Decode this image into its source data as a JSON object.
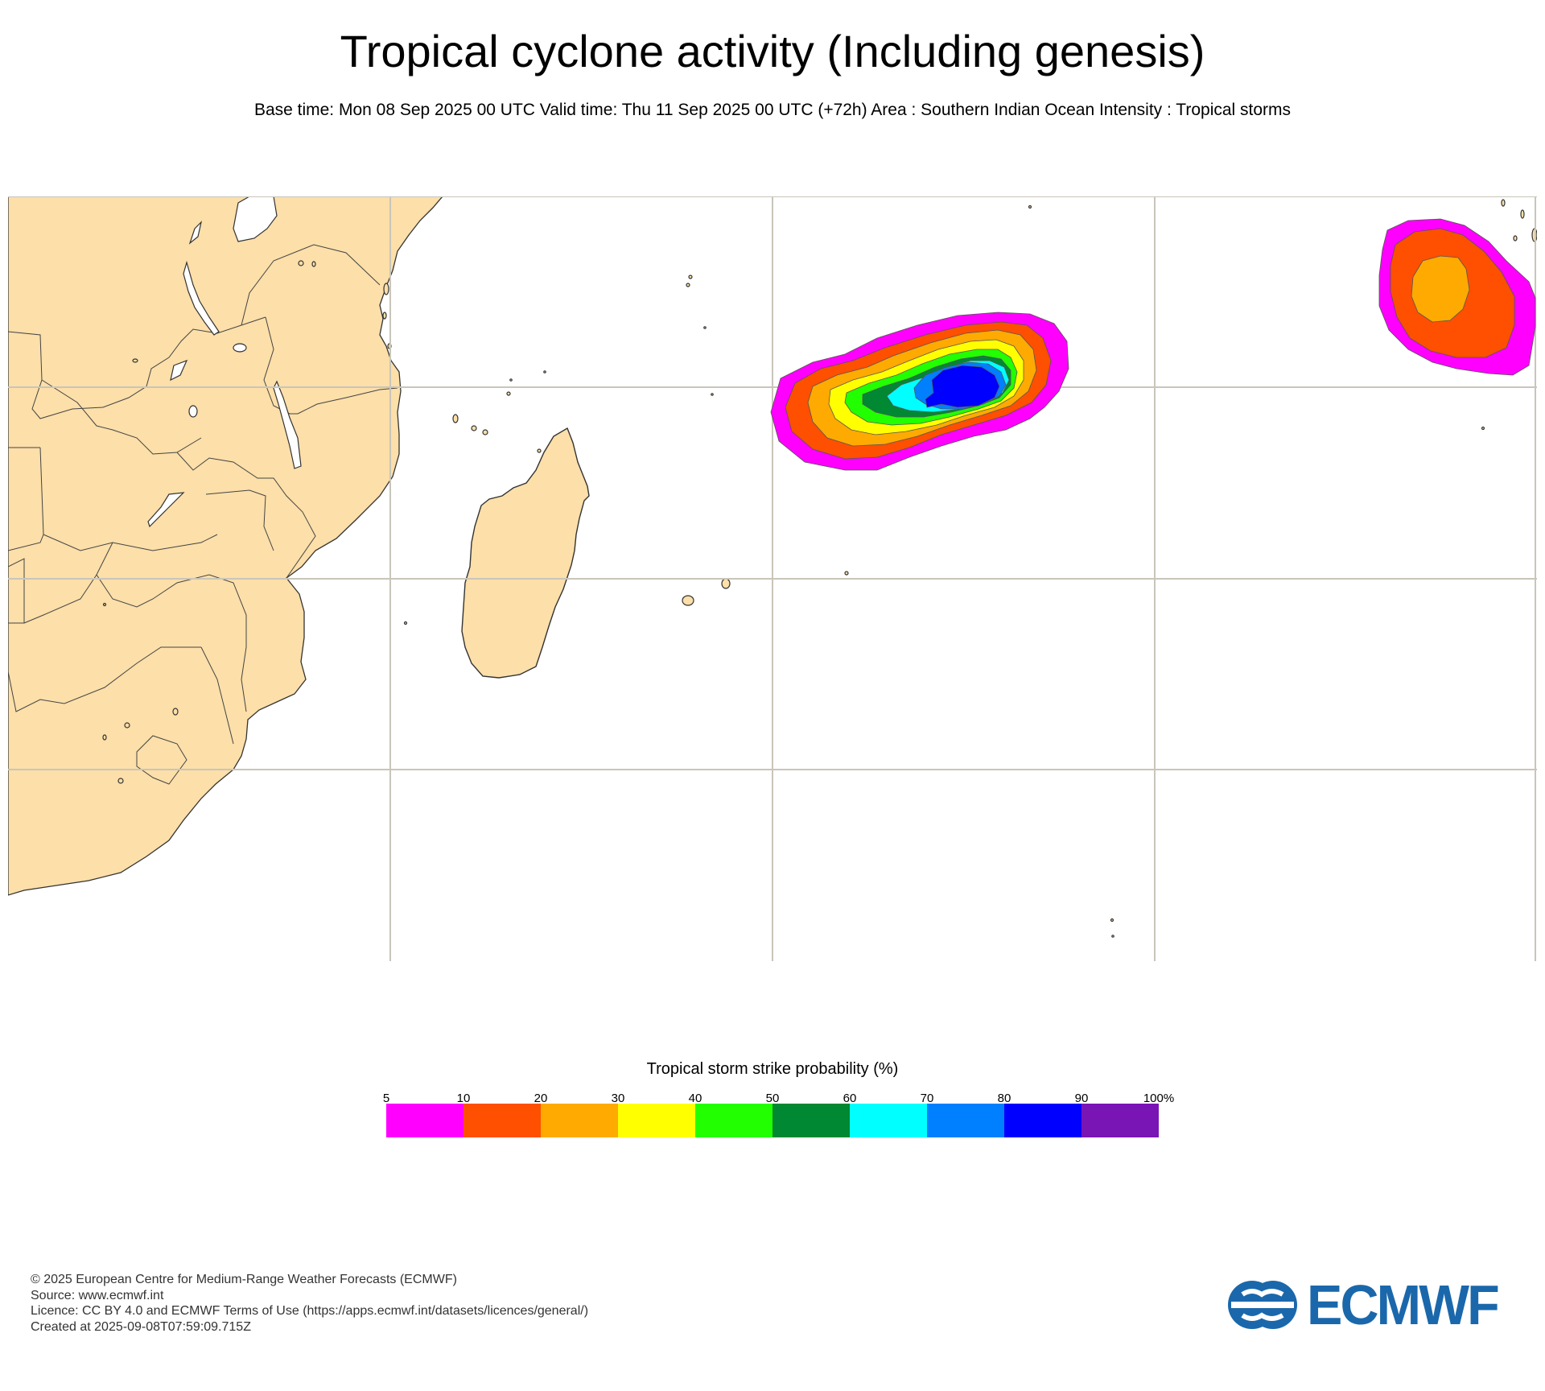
{
  "title": "Tropical cyclone activity (Including genesis)",
  "subtitle": "Base time: Mon 08 Sep 2025 00 UTC Valid time: Thu 11 Sep 2025 00 UTC (+72h) Area : Southern Indian Ocean Intensity : Tropical storms",
  "map": {
    "region": "Southern Indian Ocean",
    "land_color": "#fcdfa9",
    "ocean_color": "#ffffff",
    "gridline_color": "#c9c5ba",
    "coastline_color": "#333333",
    "probability_features": [
      {
        "name": "central-storm",
        "max_probability_band": "80-90",
        "bands": [
          "5-10",
          "10-20",
          "20-30",
          "30-40",
          "40-50",
          "50-60",
          "60-70",
          "70-80",
          "80-90"
        ]
      },
      {
        "name": "eastern-storm",
        "max_probability_band": "20-30",
        "bands": [
          "5-10",
          "10-20",
          "20-30"
        ]
      }
    ]
  },
  "legend": {
    "title": "Tropical storm strike probability (%)",
    "ticks": [
      "5",
      "10",
      "20",
      "30",
      "40",
      "50",
      "60",
      "70",
      "80",
      "90",
      "100%"
    ],
    "colors": [
      "#ff00ff",
      "#ff4f00",
      "#ffaa00",
      "#ffff00",
      "#22ff00",
      "#008833",
      "#00ffff",
      "#007fff",
      "#0000ff",
      "#7a15b5"
    ]
  },
  "footer": {
    "copyright": "© 2025 European Centre for Medium-Range Weather Forecasts (ECMWF)",
    "source": "Source: www.ecmwf.int",
    "licence": "Licence: CC BY 4.0 and ECMWF Terms of Use (https://apps.ecmwf.int/datasets/licences/general/)",
    "created": "Created at 2025-09-08T07:59:09.715Z"
  },
  "logo": {
    "text": "ECMWF",
    "color": "#1a68ab"
  }
}
